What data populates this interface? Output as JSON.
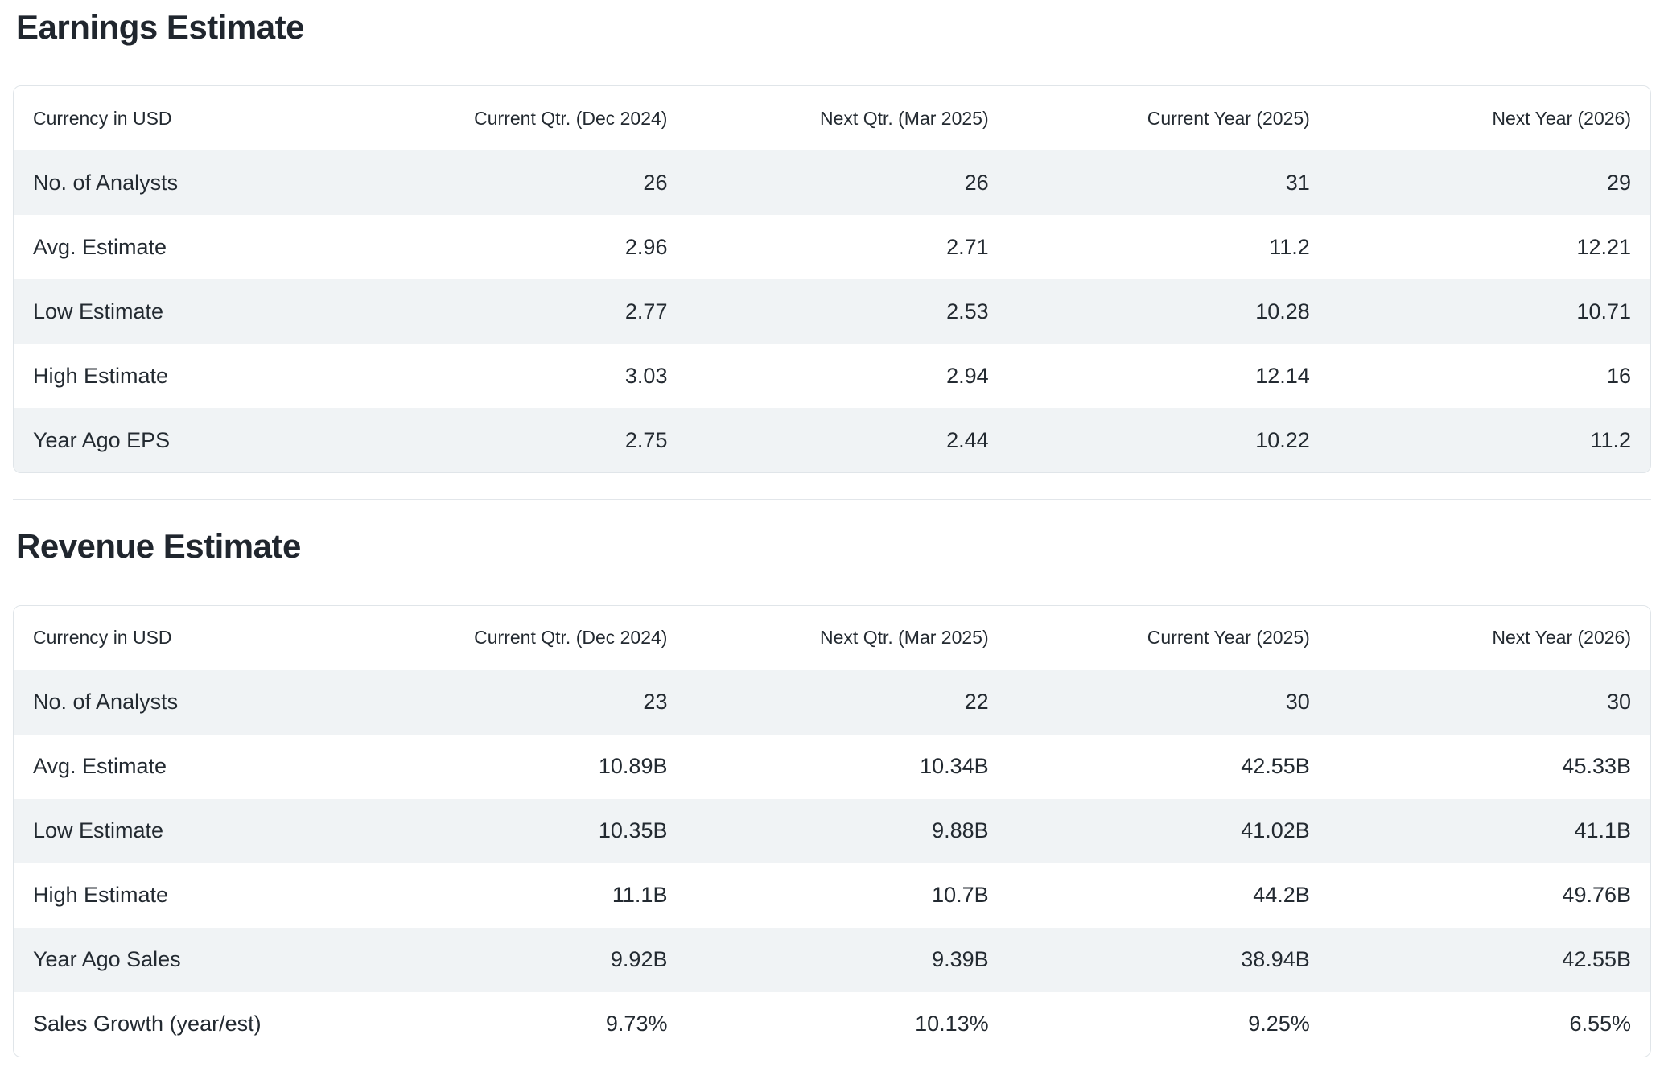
{
  "page": {
    "sections": [
      {
        "title": "Earnings Estimate",
        "table": {
          "currency_label": "Currency in USD",
          "columns": [
            "Current Qtr. (Dec 2024)",
            "Next Qtr. (Mar 2025)",
            "Current Year (2025)",
            "Next Year (2026)"
          ],
          "rows": [
            {
              "label": "No. of Analysts",
              "values": [
                "26",
                "26",
                "31",
                "29"
              ]
            },
            {
              "label": "Avg. Estimate",
              "values": [
                "2.96",
                "2.71",
                "11.2",
                "12.21"
              ]
            },
            {
              "label": "Low Estimate",
              "values": [
                "2.77",
                "2.53",
                "10.28",
                "10.71"
              ]
            },
            {
              "label": "High Estimate",
              "values": [
                "3.03",
                "2.94",
                "12.14",
                "16"
              ]
            },
            {
              "label": "Year Ago EPS",
              "values": [
                "2.75",
                "2.44",
                "10.22",
                "11.2"
              ]
            }
          ]
        }
      },
      {
        "title": "Revenue Estimate",
        "table": {
          "currency_label": "Currency in USD",
          "columns": [
            "Current Qtr. (Dec 2024)",
            "Next Qtr. (Mar 2025)",
            "Current Year (2025)",
            "Next Year (2026)"
          ],
          "rows": [
            {
              "label": "No. of Analysts",
              "values": [
                "23",
                "22",
                "30",
                "30"
              ]
            },
            {
              "label": "Avg. Estimate",
              "values": [
                "10.89B",
                "10.34B",
                "42.55B",
                "45.33B"
              ]
            },
            {
              "label": "Low Estimate",
              "values": [
                "10.35B",
                "9.88B",
                "41.02B",
                "41.1B"
              ]
            },
            {
              "label": "High Estimate",
              "values": [
                "11.1B",
                "10.7B",
                "44.2B",
                "49.76B"
              ]
            },
            {
              "label": "Year Ago Sales",
              "values": [
                "9.92B",
                "9.39B",
                "38.94B",
                "42.55B"
              ]
            },
            {
              "label": "Sales Growth (year/est)",
              "values": [
                "9.73%",
                "10.13%",
                "9.25%",
                "6.55%"
              ]
            }
          ]
        }
      }
    ]
  },
  "theme": {
    "text": "#232a31",
    "title": "#20262e",
    "stripe": "#f0f3f5",
    "card-border": "#e0e5e9",
    "divider": "#e2e6ea",
    "bg": "#ffffff"
  }
}
